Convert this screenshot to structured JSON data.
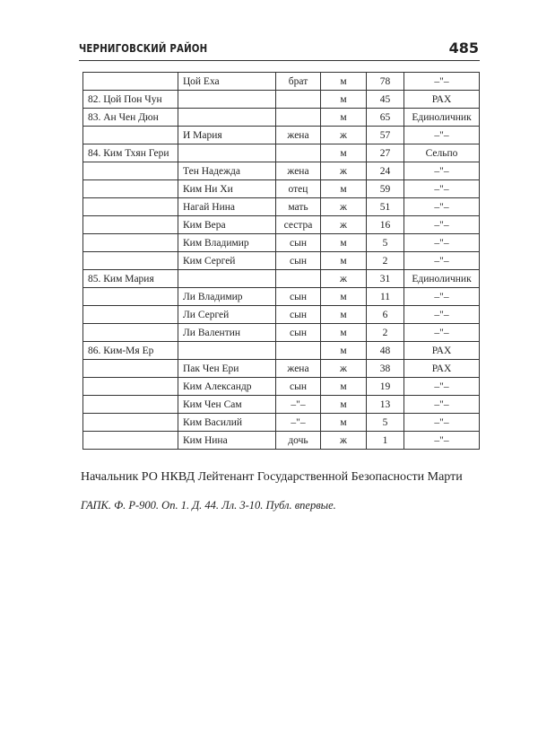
{
  "header": {
    "title": "ЧЕРНИГОВСКИЙ РАЙОН",
    "page_number": "485"
  },
  "table": {
    "rows": [
      [
        "",
        "Цой Еха",
        "брат",
        "м",
        "78",
        "–\"–"
      ],
      [
        "82. Цой Пон Чун",
        "",
        "",
        "м",
        "45",
        "РАХ"
      ],
      [
        "83. Ан Чен Дюн",
        "",
        "",
        "м",
        "65",
        "Единоличник"
      ],
      [
        "",
        "И Мария",
        "жена",
        "ж",
        "57",
        "–\"–"
      ],
      [
        "84. Ким Тхян Гери",
        "",
        "",
        "м",
        "27",
        "Сельпо"
      ],
      [
        "",
        "Тен Надежда",
        "жена",
        "ж",
        "24",
        "–\"–"
      ],
      [
        "",
        "Ким Ни Хи",
        "отец",
        "м",
        "59",
        "–\"–"
      ],
      [
        "",
        "Нагай Нина",
        "мать",
        "ж",
        "51",
        "–\"–"
      ],
      [
        "",
        "Ким Вера",
        "сестра",
        "ж",
        "16",
        "–\"–"
      ],
      [
        "",
        "Ким Владимир",
        "сын",
        "м",
        "5",
        "–\"–"
      ],
      [
        "",
        "Ким Сергей",
        "сын",
        "м",
        "2",
        "–\"–"
      ],
      [
        "85. Ким Мария",
        "",
        "",
        "ж",
        "31",
        "Единоличник"
      ],
      [
        "",
        "Ли Владимир",
        "сын",
        "м",
        "11",
        "–\"–"
      ],
      [
        "",
        "Ли Сергей",
        "сын",
        "м",
        "6",
        "–\"–"
      ],
      [
        "",
        "Ли Валентин",
        "сын",
        "м",
        "2",
        "–\"–"
      ],
      [
        "86. Ким-Мя Ер",
        "",
        "",
        "м",
        "48",
        "РАХ"
      ],
      [
        "",
        "Пак Чен Ери",
        "жена",
        "ж",
        "38",
        "РАХ"
      ],
      [
        "",
        "Ким Александр",
        "сын",
        "м",
        "19",
        "–\"–"
      ],
      [
        "",
        "Ким Чен Сам",
        "–\"–",
        "м",
        "13",
        "–\"–"
      ],
      [
        "",
        "Ким Василий",
        "–\"–",
        "м",
        "5",
        "–\"–"
      ],
      [
        "",
        "Ким Нина",
        "дочь",
        "ж",
        "1",
        "–\"–"
      ]
    ]
  },
  "signature": "Начальник РО НКВД Лейтенант Государственной Безопасности Марти",
  "source": "ГАПК. Ф. Р-900. Оп. 1. Д. 44. Лл. 3-10. Публ. впервые."
}
